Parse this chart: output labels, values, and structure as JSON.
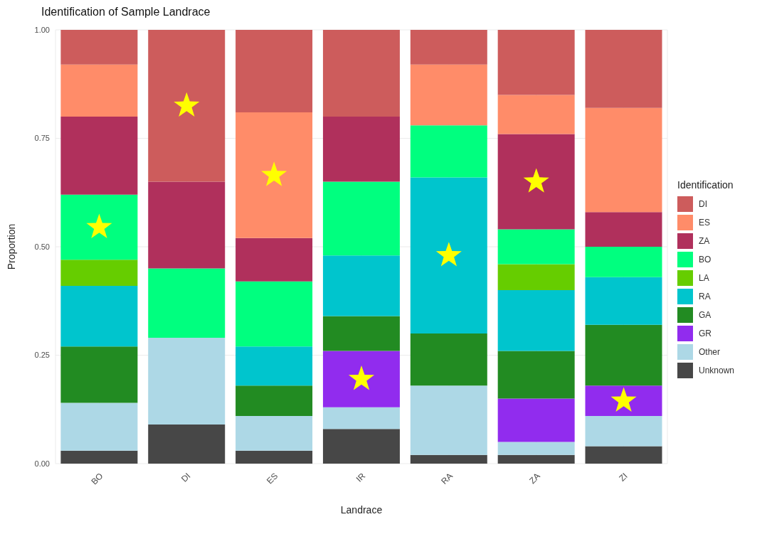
{
  "chart_data": {
    "type": "bar",
    "title": "Identification of Sample Landrace",
    "xlabel": "Landrace",
    "ylabel": "Proportion",
    "legend_title": "Identification",
    "categories": [
      "BO",
      "DI",
      "ES",
      "IR",
      "RA",
      "ZA",
      "ZI"
    ],
    "stacked": true,
    "ylim": [
      0,
      1
    ],
    "yticks": [
      {
        "value": 0,
        "label": "0.00"
      },
      {
        "value": 0.25,
        "label": "0.25"
      },
      {
        "value": 0.5,
        "label": "0.50"
      },
      {
        "value": 0.75,
        "label": "0.75"
      },
      {
        "value": 1,
        "label": "1.00"
      }
    ],
    "grid": true,
    "legend": "right",
    "series": [
      {
        "name": "Unknown",
        "color": "#474747",
        "values": [
          0.03,
          0.09,
          0.03,
          0.08,
          0.02,
          0.02,
          0.04
        ]
      },
      {
        "name": "Other",
        "color": "#add8e6",
        "values": [
          0.11,
          0.2,
          0.08,
          0.05,
          0.16,
          0.03,
          0.07
        ]
      },
      {
        "name": "GR",
        "color": "#912cee",
        "values": [
          0,
          0,
          0,
          0.13,
          0,
          0.1,
          0.07
        ]
      },
      {
        "name": "GA",
        "color": "#228b22",
        "values": [
          0.13,
          0,
          0.07,
          0.08,
          0.12,
          0.11,
          0.14
        ]
      },
      {
        "name": "RA",
        "color": "#00c5cd",
        "values": [
          0.14,
          0,
          0.09,
          0.14,
          0.36,
          0.14,
          0.11
        ]
      },
      {
        "name": "LA",
        "color": "#66cd00",
        "values": [
          0.06,
          0,
          0,
          0,
          0,
          0.06,
          0
        ]
      },
      {
        "name": "BO",
        "color": "#00ff7f",
        "values": [
          0.15,
          0.16,
          0.15,
          0.17,
          0.12,
          0.08,
          0.07
        ]
      },
      {
        "name": "ZA",
        "color": "#b0305c",
        "values": [
          0.18,
          0.2,
          0.1,
          0.15,
          0,
          0.22,
          0.08
        ]
      },
      {
        "name": "ES",
        "color": "#ff8c69",
        "values": [
          0.12,
          0,
          0.29,
          0,
          0.14,
          0.09,
          0.24
        ]
      },
      {
        "name": "DI",
        "color": "#cd5c5c",
        "values": [
          0.08,
          0.35,
          0.19,
          0.2,
          0.08,
          0.15,
          0.18
        ]
      }
    ]
  }
}
